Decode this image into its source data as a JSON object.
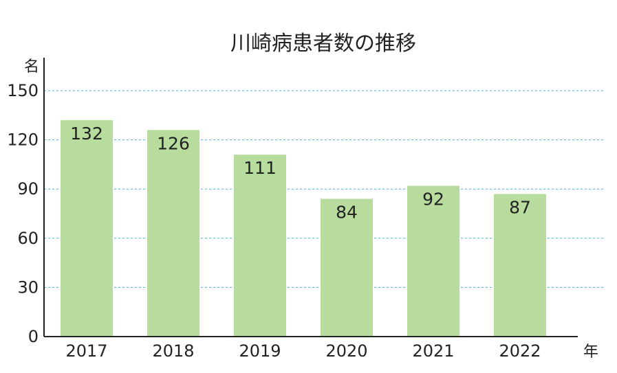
{
  "chart_data": {
    "type": "bar",
    "title": "川崎病患者数の推移",
    "ylabel": "名",
    "xlabel": "年",
    "categories": [
      "2017",
      "2018",
      "2019",
      "2020",
      "2021",
      "2022"
    ],
    "values": [
      132,
      126,
      111,
      84,
      92,
      87
    ],
    "ylim": [
      0,
      150
    ],
    "yticks": [
      0,
      30,
      60,
      90,
      120,
      150
    ],
    "grid": true,
    "legend": "none",
    "bar_color": "#b8dc9e",
    "grid_color": "#5aaec8",
    "axis_color": "#222222"
  }
}
